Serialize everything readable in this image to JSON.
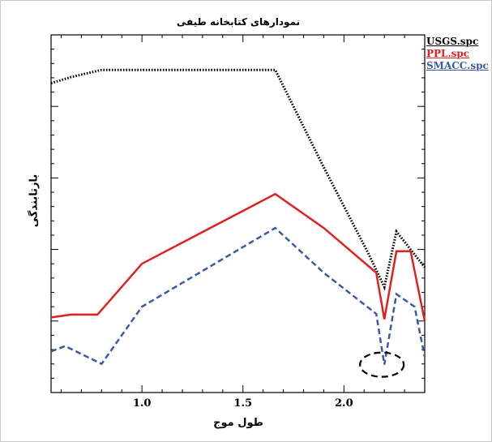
{
  "chart_data": {
    "type": "line",
    "title": "نمودارهای کتابخانه طیفی",
    "xlabel": "طول موج",
    "ylabel": "بازتابندگی",
    "xlim": [
      0.55,
      2.4
    ],
    "ylim": [
      0,
      10
    ],
    "x_ticks": [
      1.0,
      1.5,
      2.0
    ],
    "x_tick_labels": [
      "1.0",
      "1.5",
      "2.0"
    ],
    "grid": false,
    "legend_position": "outside-right",
    "annotation": {
      "type": "dashed-ellipse",
      "x": 2.2,
      "y": 0.78
    },
    "series": [
      {
        "name": "USGS.spc",
        "color": "#000000",
        "style": "dotted",
        "x": [
          0.55,
          0.65,
          0.8,
          1.0,
          1.66,
          1.9,
          2.12,
          2.2,
          2.26,
          2.4
        ],
        "y": [
          8.65,
          8.82,
          9.02,
          9.02,
          9.02,
          6.3,
          3.9,
          2.95,
          4.5,
          3.5
        ]
      },
      {
        "name": "PPL.spc",
        "color": "#e02020",
        "style": "solid",
        "x": [
          0.55,
          0.65,
          0.78,
          1.0,
          1.66,
          1.9,
          2.16,
          2.2,
          2.26,
          2.33,
          2.4
        ],
        "y": [
          2.1,
          2.18,
          2.18,
          3.6,
          5.55,
          4.6,
          3.35,
          2.05,
          3.95,
          3.95,
          2.0
        ]
      },
      {
        "name": "SMACC.spc",
        "color": "#3a5aa8",
        "style": "dashed",
        "x": [
          0.55,
          0.62,
          0.8,
          1.0,
          1.66,
          1.9,
          2.16,
          2.2,
          2.26,
          2.35,
          2.4
        ],
        "y": [
          1.15,
          1.3,
          0.8,
          2.4,
          4.6,
          3.35,
          2.2,
          0.78,
          2.75,
          2.4,
          1.0
        ]
      }
    ]
  }
}
